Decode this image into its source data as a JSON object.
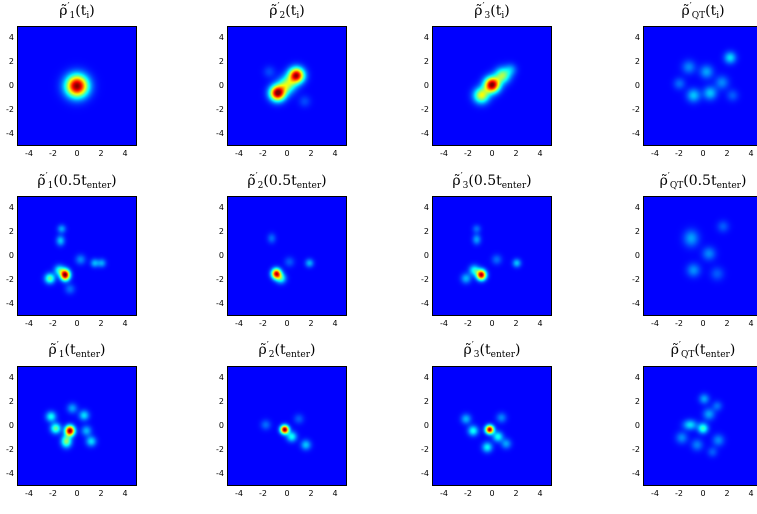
{
  "chart_data": [
    {
      "type": "heatmap",
      "title": "ρ̃′₁(tᵢ)",
      "title_parts": {
        "sub": "1",
        "arg": "(t",
        "argsub": "i",
        "close": ")"
      },
      "xlim": [
        -5,
        5
      ],
      "ylim": [
        -5,
        5
      ],
      "xticks": [
        "-4",
        "-2",
        "0",
        "2",
        "4"
      ],
      "yticks": [
        "4",
        "2",
        "0",
        "-2",
        "-4"
      ],
      "peaks": [
        {
          "x": 0,
          "y": 0,
          "amp": 1.0,
          "sx": 0.65,
          "sy": 0.65
        }
      ]
    },
    {
      "type": "heatmap",
      "title": "ρ̃′₂(tᵢ)",
      "title_parts": {
        "sub": "2",
        "arg": "(t",
        "argsub": "i",
        "close": ")"
      },
      "xlim": [
        -5,
        5
      ],
      "ylim": [
        -5,
        5
      ],
      "xticks": [
        "-4",
        "-2",
        "0",
        "2",
        "4"
      ],
      "yticks": [
        "4",
        "2",
        "0",
        "-2",
        "-4"
      ],
      "peaks": [
        {
          "x": -0.8,
          "y": -0.6,
          "amp": 1.0,
          "sx": 0.45,
          "sy": 0.45
        },
        {
          "x": 0.8,
          "y": 0.9,
          "amp": 0.95,
          "sx": 0.45,
          "sy": 0.45
        },
        {
          "x": 0,
          "y": 0.1,
          "amp": 0.45,
          "sx": 0.5,
          "sy": 0.5
        },
        {
          "x": -1.5,
          "y": 1.2,
          "amp": 0.08,
          "sx": 0.35,
          "sy": 0.35
        },
        {
          "x": 1.5,
          "y": -1.3,
          "amp": 0.08,
          "sx": 0.35,
          "sy": 0.35
        }
      ]
    },
    {
      "type": "heatmap",
      "title": "ρ̃′₃(tᵢ)",
      "title_parts": {
        "sub": "3",
        "arg": "(t",
        "argsub": "i",
        "close": ")"
      },
      "xlim": [
        -5,
        5
      ],
      "ylim": [
        -5,
        5
      ],
      "xticks": [
        "-4",
        "-2",
        "0",
        "2",
        "4"
      ],
      "yticks": [
        "4",
        "2",
        "0",
        "-2",
        "-4"
      ],
      "peaks": [
        {
          "x": 0,
          "y": 0.1,
          "amp": 1.0,
          "sx": 0.45,
          "sy": 0.45
        },
        {
          "x": -0.9,
          "y": -0.8,
          "amp": 0.55,
          "sx": 0.45,
          "sy": 0.45
        },
        {
          "x": 0.9,
          "y": 0.9,
          "amp": 0.45,
          "sx": 0.45,
          "sy": 0.45
        },
        {
          "x": 1.6,
          "y": 1.4,
          "amp": 0.15,
          "sx": 0.35,
          "sy": 0.35
        }
      ]
    },
    {
      "type": "heatmap",
      "title": "ρ̃′QT(tᵢ)",
      "title_parts": {
        "sub": "QT",
        "arg": "(t",
        "argsub": "i",
        "close": ")"
      },
      "xlim": [
        -5,
        5
      ],
      "ylim": [
        -5,
        5
      ],
      "xticks": [
        "-4",
        "-2",
        "0",
        "2",
        "4"
      ],
      "yticks": [
        "4",
        "2",
        "0",
        "-2",
        "-4"
      ],
      "peaks": [
        {
          "x": 2.3,
          "y": 2.4,
          "amp": 0.25,
          "sx": 0.35,
          "sy": 0.35
        },
        {
          "x": -1.2,
          "y": 1.6,
          "amp": 0.15,
          "sx": 0.4,
          "sy": 0.4
        },
        {
          "x": 0.3,
          "y": 1.2,
          "amp": 0.18,
          "sx": 0.4,
          "sy": 0.4
        },
        {
          "x": -0.8,
          "y": -0.8,
          "amp": 0.22,
          "sx": 0.4,
          "sy": 0.4
        },
        {
          "x": 0.6,
          "y": -0.6,
          "amp": 0.22,
          "sx": 0.4,
          "sy": 0.4
        },
        {
          "x": 1.6,
          "y": 0.3,
          "amp": 0.15,
          "sx": 0.4,
          "sy": 0.4
        },
        {
          "x": -2.0,
          "y": 0.2,
          "amp": 0.12,
          "sx": 0.35,
          "sy": 0.35
        },
        {
          "x": 2.5,
          "y": -0.8,
          "amp": 0.1,
          "sx": 0.35,
          "sy": 0.35
        }
      ]
    },
    {
      "type": "heatmap",
      "title": "ρ̃′₁(0.5t_enter)",
      "title_parts": {
        "sub": "1",
        "arg": "(0.5t",
        "argsub": "enter",
        "close": ")"
      },
      "xlim": [
        -5,
        5
      ],
      "ylim": [
        -5,
        5
      ],
      "xticks": [
        "-4",
        "-2",
        "0",
        "2",
        "4"
      ],
      "yticks": [
        "4",
        "2",
        "0",
        "-2",
        "-4"
      ],
      "peaks": [
        {
          "x": -1.0,
          "y": -1.6,
          "amp": 1.0,
          "sx": 0.28,
          "sy": 0.32
        },
        {
          "x": -2.3,
          "y": -1.9,
          "amp": 0.4,
          "sx": 0.3,
          "sy": 0.3
        },
        {
          "x": -1.5,
          "y": -1.2,
          "amp": 0.3,
          "sx": 0.3,
          "sy": 0.3
        },
        {
          "x": -1.4,
          "y": 1.3,
          "amp": 0.22,
          "sx": 0.25,
          "sy": 0.3
        },
        {
          "x": -1.3,
          "y": 2.3,
          "amp": 0.18,
          "sx": 0.25,
          "sy": 0.25
        },
        {
          "x": 1.5,
          "y": -0.6,
          "amp": 0.2,
          "sx": 0.25,
          "sy": 0.25
        },
        {
          "x": 2.1,
          "y": -0.6,
          "amp": 0.18,
          "sx": 0.25,
          "sy": 0.25
        },
        {
          "x": 0.3,
          "y": -0.3,
          "amp": 0.15,
          "sx": 0.3,
          "sy": 0.3
        },
        {
          "x": -0.6,
          "y": -2.8,
          "amp": 0.12,
          "sx": 0.3,
          "sy": 0.3
        }
      ]
    },
    {
      "type": "heatmap",
      "title": "ρ̃′₂(0.5t_enter)",
      "title_parts": {
        "sub": "2",
        "arg": "(0.5t",
        "argsub": "enter",
        "close": ")"
      },
      "xlim": [
        -5,
        5
      ],
      "ylim": [
        -5,
        5
      ],
      "xticks": [
        "-4",
        "-2",
        "0",
        "2",
        "4"
      ],
      "yticks": [
        "4",
        "2",
        "0",
        "-2",
        "-4"
      ],
      "peaks": [
        {
          "x": -0.9,
          "y": -1.5,
          "amp": 0.9,
          "sx": 0.28,
          "sy": 0.3
        },
        {
          "x": -0.5,
          "y": -1.9,
          "amp": 0.3,
          "sx": 0.3,
          "sy": 0.3
        },
        {
          "x": -1.3,
          "y": 1.5,
          "amp": 0.12,
          "sx": 0.25,
          "sy": 0.3
        },
        {
          "x": 1.9,
          "y": -0.6,
          "amp": 0.2,
          "sx": 0.25,
          "sy": 0.25
        },
        {
          "x": 0.2,
          "y": -0.5,
          "amp": 0.1,
          "sx": 0.3,
          "sy": 0.3
        }
      ]
    },
    {
      "type": "heatmap",
      "title": "ρ̃′₃(0.5t_enter)",
      "title_parts": {
        "sub": "3",
        "arg": "(0.5t",
        "argsub": "enter",
        "close": ")"
      },
      "xlim": [
        -5,
        5
      ],
      "ylim": [
        -5,
        5
      ],
      "xticks": [
        "-4",
        "-2",
        "0",
        "2",
        "4"
      ],
      "yticks": [
        "4",
        "2",
        "0",
        "-2",
        "-4"
      ],
      "peaks": [
        {
          "x": -0.9,
          "y": -1.6,
          "amp": 0.95,
          "sx": 0.28,
          "sy": 0.3
        },
        {
          "x": -1.5,
          "y": -1.2,
          "amp": 0.3,
          "sx": 0.3,
          "sy": 0.3
        },
        {
          "x": -1.3,
          "y": 1.4,
          "amp": 0.18,
          "sx": 0.25,
          "sy": 0.3
        },
        {
          "x": -1.3,
          "y": 2.3,
          "amp": 0.12,
          "sx": 0.25,
          "sy": 0.25
        },
        {
          "x": 2.1,
          "y": -0.6,
          "amp": 0.22,
          "sx": 0.25,
          "sy": 0.25
        },
        {
          "x": 0.4,
          "y": -0.3,
          "amp": 0.12,
          "sx": 0.3,
          "sy": 0.3
        },
        {
          "x": -2.2,
          "y": -1.9,
          "amp": 0.2,
          "sx": 0.3,
          "sy": 0.3
        }
      ]
    },
    {
      "type": "heatmap",
      "title": "ρ̃′QT(0.5t_enter)",
      "title_parts": {
        "sub": "QT",
        "arg": "(0.5t",
        "argsub": "enter",
        "close": ")"
      },
      "xlim": [
        -5,
        5
      ],
      "ylim": [
        -5,
        5
      ],
      "xticks": [
        "-4",
        "-2",
        "0",
        "2",
        "4"
      ],
      "yticks": [
        "4",
        "2",
        "0",
        "-2",
        "-4"
      ],
      "peaks": [
        {
          "x": -1.0,
          "y": 1.5,
          "amp": 0.18,
          "sx": 0.45,
          "sy": 0.5
        },
        {
          "x": 0.5,
          "y": 0.2,
          "amp": 0.15,
          "sx": 0.4,
          "sy": 0.4
        },
        {
          "x": -0.8,
          "y": -1.2,
          "amp": 0.16,
          "sx": 0.4,
          "sy": 0.4
        },
        {
          "x": 1.7,
          "y": 2.5,
          "amp": 0.1,
          "sx": 0.35,
          "sy": 0.35
        },
        {
          "x": 1.2,
          "y": -1.5,
          "amp": 0.1,
          "sx": 0.4,
          "sy": 0.4
        }
      ]
    },
    {
      "type": "heatmap",
      "title": "ρ̃′₁(t_enter)",
      "title_parts": {
        "sub": "1",
        "arg": "(t",
        "argsub": "enter",
        "close": ")"
      },
      "xlim": [
        -5,
        5
      ],
      "ylim": [
        -5,
        5
      ],
      "xticks": [
        "-4",
        "-2",
        "0",
        "2",
        "4"
      ],
      "yticks": [
        "4",
        "2",
        "0",
        "-2",
        "-4"
      ],
      "peaks": [
        {
          "x": -0.6,
          "y": -0.4,
          "amp": 1.0,
          "sx": 0.28,
          "sy": 0.3
        },
        {
          "x": -0.9,
          "y": -1.3,
          "amp": 0.45,
          "sx": 0.3,
          "sy": 0.35
        },
        {
          "x": -1.8,
          "y": -0.2,
          "amp": 0.4,
          "sx": 0.3,
          "sy": 0.3
        },
        {
          "x": -2.2,
          "y": 0.8,
          "amp": 0.3,
          "sx": 0.3,
          "sy": 0.3
        },
        {
          "x": 0.6,
          "y": 0.9,
          "amp": 0.25,
          "sx": 0.3,
          "sy": 0.3
        },
        {
          "x": 1.2,
          "y": -1.3,
          "amp": 0.25,
          "sx": 0.3,
          "sy": 0.3
        },
        {
          "x": -0.4,
          "y": 1.5,
          "amp": 0.18,
          "sx": 0.3,
          "sy": 0.3
        },
        {
          "x": 0.8,
          "y": -0.4,
          "amp": 0.2,
          "sx": 0.3,
          "sy": 0.3
        }
      ]
    },
    {
      "type": "heatmap",
      "title": "ρ̃′₂(t_enter)",
      "title_parts": {
        "sub": "2",
        "arg": "(t",
        "argsub": "enter",
        "close": ")"
      },
      "xlim": [
        -5,
        5
      ],
      "ylim": [
        -5,
        5
      ],
      "xticks": [
        "-4",
        "-2",
        "0",
        "2",
        "4"
      ],
      "yticks": [
        "4",
        "2",
        "0",
        "-2",
        "-4"
      ],
      "peaks": [
        {
          "x": -0.2,
          "y": -0.3,
          "amp": 1.0,
          "sx": 0.25,
          "sy": 0.25
        },
        {
          "x": 0.4,
          "y": -0.9,
          "amp": 0.3,
          "sx": 0.3,
          "sy": 0.3
        },
        {
          "x": 1.6,
          "y": -1.6,
          "amp": 0.22,
          "sx": 0.3,
          "sy": 0.3
        },
        {
          "x": -1.8,
          "y": 0.1,
          "amp": 0.12,
          "sx": 0.3,
          "sy": 0.3
        },
        {
          "x": 1.0,
          "y": 0.6,
          "amp": 0.1,
          "sx": 0.3,
          "sy": 0.3
        }
      ]
    },
    {
      "type": "heatmap",
      "title": "ρ̃′₃(t_enter)",
      "title_parts": {
        "sub": "3",
        "arg": "(t",
        "argsub": "enter",
        "close": ")"
      },
      "xlim": [
        -5,
        5
      ],
      "ylim": [
        -5,
        5
      ],
      "xticks": [
        "-4",
        "-2",
        "0",
        "2",
        "4"
      ],
      "yticks": [
        "4",
        "2",
        "0",
        "-2",
        "-4"
      ],
      "peaks": [
        {
          "x": -0.2,
          "y": -0.3,
          "amp": 0.95,
          "sx": 0.25,
          "sy": 0.25
        },
        {
          "x": -1.6,
          "y": -0.4,
          "amp": 0.3,
          "sx": 0.3,
          "sy": 0.3
        },
        {
          "x": -2.2,
          "y": 0.6,
          "amp": 0.2,
          "sx": 0.3,
          "sy": 0.3
        },
        {
          "x": 0.5,
          "y": -0.9,
          "amp": 0.3,
          "sx": 0.3,
          "sy": 0.3
        },
        {
          "x": -0.4,
          "y": -1.8,
          "amp": 0.28,
          "sx": 0.3,
          "sy": 0.3
        },
        {
          "x": 1.2,
          "y": -1.5,
          "amp": 0.18,
          "sx": 0.3,
          "sy": 0.3
        },
        {
          "x": 0.8,
          "y": 0.7,
          "amp": 0.15,
          "sx": 0.3,
          "sy": 0.3
        }
      ]
    },
    {
      "type": "heatmap",
      "title": "ρ̃′QT(t_enter)",
      "title_parts": {
        "sub": "QT",
        "arg": "(t",
        "argsub": "enter",
        "close": ")"
      },
      "xlim": [
        -5,
        5
      ],
      "ylim": [
        -5,
        5
      ],
      "xticks": [
        "-4",
        "-2",
        "0",
        "2",
        "4"
      ],
      "yticks": [
        "4",
        "2",
        "0",
        "-2",
        "-4"
      ],
      "peaks": [
        {
          "x": 0.0,
          "y": -0.2,
          "amp": 0.35,
          "sx": 0.3,
          "sy": 0.3
        },
        {
          "x": -1.1,
          "y": 0.1,
          "amp": 0.25,
          "sx": 0.4,
          "sy": 0.3
        },
        {
          "x": 0.5,
          "y": 1.0,
          "amp": 0.18,
          "sx": 0.35,
          "sy": 0.35
        },
        {
          "x": 0.1,
          "y": 2.3,
          "amp": 0.18,
          "sx": 0.3,
          "sy": 0.3
        },
        {
          "x": 1.2,
          "y": 1.7,
          "amp": 0.12,
          "sx": 0.3,
          "sy": 0.3
        },
        {
          "x": -1.8,
          "y": -1.0,
          "amp": 0.15,
          "sx": 0.35,
          "sy": 0.35
        },
        {
          "x": 1.3,
          "y": -1.2,
          "amp": 0.15,
          "sx": 0.35,
          "sy": 0.35
        },
        {
          "x": -0.5,
          "y": -1.6,
          "amp": 0.14,
          "sx": 0.35,
          "sy": 0.35
        },
        {
          "x": 0.8,
          "y": -2.2,
          "amp": 0.1,
          "sx": 0.3,
          "sy": 0.3
        }
      ]
    }
  ]
}
